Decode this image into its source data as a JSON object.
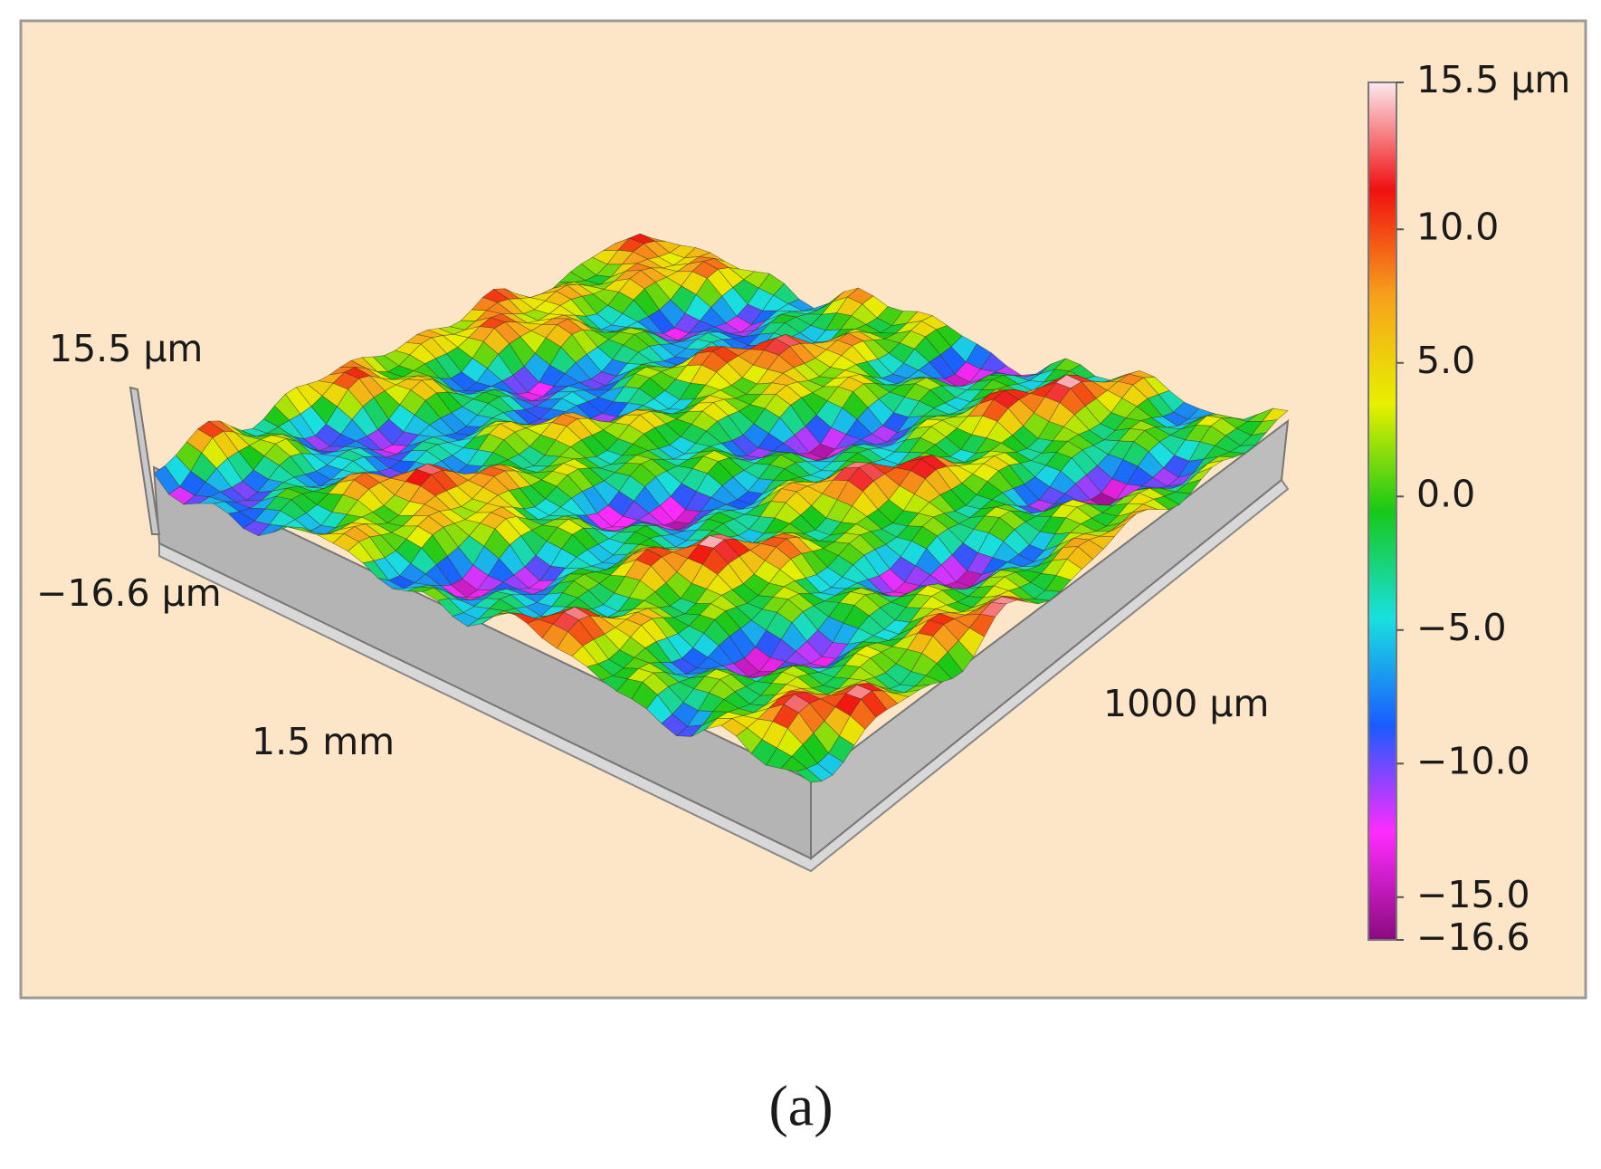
{
  "chart_data": {
    "type": "surface",
    "caption": "(a)",
    "z_max_label": "15.5 µm",
    "z_min_label": "−16.6 µm",
    "x_label": "1.5 mm",
    "y_label": "1000 µm",
    "zlim": [
      -16.6,
      15.5
    ],
    "zticks": [
      {
        "value": 15.5,
        "label": "15.5 µm"
      },
      {
        "value": 10.0,
        "label": "10.0"
      },
      {
        "value": 5.0,
        "label": "5.0"
      },
      {
        "value": 0.0,
        "label": "0.0"
      },
      {
        "value": -5.0,
        "label": "−5.0"
      },
      {
        "value": -10.0,
        "label": "−10.0"
      },
      {
        "value": -15.0,
        "label": "−15.0"
      },
      {
        "value": -16.6,
        "label": "−16.6"
      }
    ],
    "colormap": [
      "#8a0a7e",
      "#ff2bff",
      "#1a5cff",
      "#19e0e0",
      "#18c818",
      "#e8f000",
      "#f7a21c",
      "#f01010",
      "#fbe8ee"
    ]
  }
}
